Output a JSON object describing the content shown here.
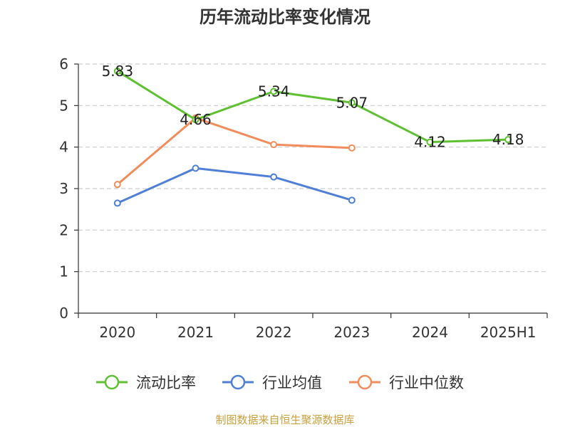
{
  "chart_data": {
    "type": "line",
    "title": "历年流动比率变化情况",
    "categories": [
      "2020",
      "2021",
      "2022",
      "2023",
      "2024",
      "2025H1"
    ],
    "ylim": [
      0,
      6
    ],
    "yticks": [
      "0",
      "1",
      "2",
      "3",
      "4",
      "5",
      "6"
    ],
    "grid": true,
    "legend_position": "bottom",
    "series": [
      {
        "name": "流动比率",
        "color": "#5ec132",
        "values": [
          5.83,
          4.66,
          5.34,
          5.07,
          4.12,
          4.18
        ],
        "labels": [
          "5.83",
          "4.66",
          "5.34",
          "5.07",
          "4.12",
          "4.18"
        ]
      },
      {
        "name": "行业均值",
        "color": "#4f7fd6",
        "values": [
          2.65,
          3.49,
          3.28,
          2.72,
          null,
          null
        ]
      },
      {
        "name": "行业中位数",
        "color": "#f28c5a",
        "values": [
          3.1,
          4.7,
          4.06,
          3.98,
          null,
          null
        ]
      }
    ],
    "source": "制图数据来自恒生聚源数据库"
  }
}
